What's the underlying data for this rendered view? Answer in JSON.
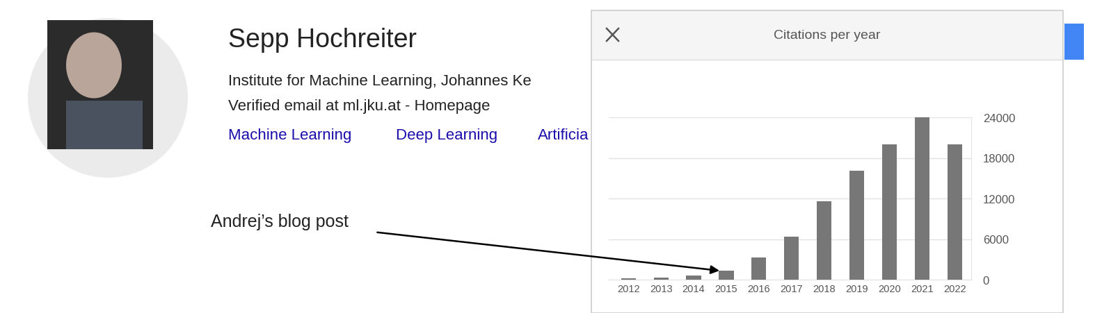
{
  "profile": {
    "name": "Sepp Hochreiter",
    "affiliation": "Institute for Machine Learning, Johannes Ke",
    "email": "Verified email at ml.jku.at - Homepage",
    "interests": [
      "Machine Learning",
      "Deep Learning",
      "Artificia"
    ]
  },
  "chart_data": {
    "type": "bar",
    "title": "Citations per year",
    "categories": [
      "2012",
      "2013",
      "2014",
      "2015",
      "2016",
      "2017",
      "2018",
      "2019",
      "2020",
      "2021",
      "2022"
    ],
    "values": [
      250,
      300,
      600,
      1300,
      3300,
      6400,
      11600,
      16100,
      20000,
      24000,
      20000
    ],
    "color": "#777777",
    "ylim": [
      0,
      24000
    ],
    "yticks": [
      0,
      6000,
      12000,
      18000,
      24000
    ],
    "grid": true,
    "annotations": [
      {
        "text": "Andrej’s blog post",
        "category": "2015"
      }
    ]
  }
}
